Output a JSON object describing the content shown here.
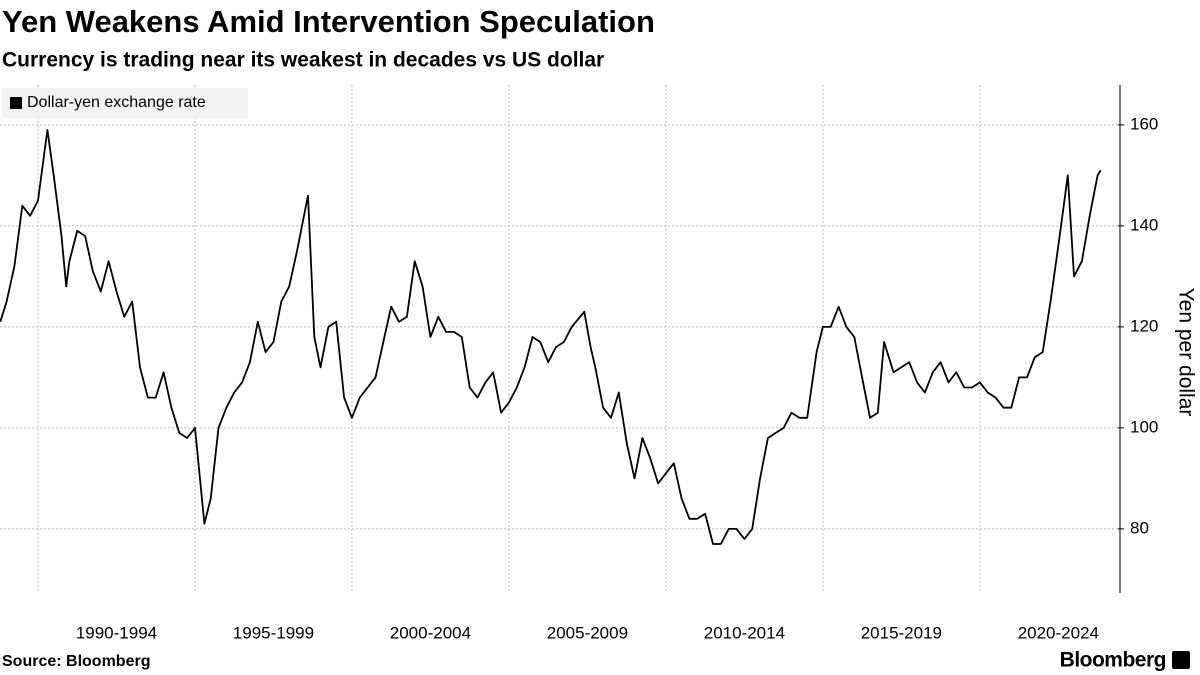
{
  "chart_data": {
    "type": "line",
    "title": "Yen Weakens Amid Intervention Speculation",
    "subtitle": "Currency is trading near its weakest in decades vs US dollar",
    "y_label": "Yen per dollar",
    "source": "Source: Bloomberg",
    "brand": "Bloomberg",
    "legend": "top-left",
    "grid": true,
    "x": [
      1988.8,
      1989.0,
      1989.25,
      1989.5,
      1989.75,
      1990.0,
      1990.3,
      1990.5,
      1990.75,
      1990.9,
      1991.0,
      1991.25,
      1991.5,
      1991.75,
      1992.0,
      1992.25,
      1992.5,
      1992.75,
      1993.0,
      1993.25,
      1993.5,
      1993.75,
      1994.0,
      1994.25,
      1994.5,
      1994.75,
      1995.0,
      1995.3,
      1995.5,
      1995.75,
      1996.0,
      1996.25,
      1996.5,
      1996.75,
      1997.0,
      1997.25,
      1997.5,
      1997.75,
      1998.0,
      1998.25,
      1998.6,
      1998.8,
      1999.0,
      1999.25,
      1999.5,
      1999.75,
      2000.0,
      2000.25,
      2000.5,
      2000.75,
      2001.0,
      2001.25,
      2001.5,
      2001.75,
      2002.0,
      2002.25,
      2002.5,
      2002.75,
      2003.0,
      2003.25,
      2003.5,
      2003.75,
      2004.0,
      2004.25,
      2004.5,
      2004.75,
      2005.0,
      2005.25,
      2005.5,
      2005.75,
      2006.0,
      2006.25,
      2006.5,
      2006.75,
      2007.0,
      2007.4,
      2007.6,
      2007.75,
      2008.0,
      2008.25,
      2008.5,
      2008.75,
      2009.0,
      2009.25,
      2009.5,
      2009.75,
      2010.0,
      2010.25,
      2010.5,
      2010.75,
      2011.0,
      2011.25,
      2011.5,
      2011.75,
      2012.0,
      2012.25,
      2012.5,
      2012.75,
      2013.0,
      2013.25,
      2013.5,
      2013.75,
      2014.0,
      2014.25,
      2014.5,
      2014.8,
      2015.0,
      2015.25,
      2015.5,
      2015.75,
      2016.0,
      2016.25,
      2016.5,
      2016.75,
      2016.95,
      2017.25,
      2017.5,
      2017.75,
      2018.0,
      2018.25,
      2018.5,
      2018.75,
      2019.0,
      2019.25,
      2019.5,
      2019.75,
      2020.0,
      2020.25,
      2020.5,
      2020.75,
      2021.0,
      2021.25,
      2021.5,
      2021.75,
      2022.0,
      2022.25,
      2022.5,
      2022.8,
      2023.0,
      2023.25,
      2023.5,
      2023.75,
      2023.85
    ],
    "series": [
      {
        "name": "Dollar-yen exchange rate",
        "color": "#000000",
        "values": [
          121,
          125,
          132,
          144,
          142,
          145,
          159,
          150,
          138,
          128,
          133,
          139,
          138,
          131,
          127,
          133,
          127,
          122,
          125,
          112,
          106,
          106,
          111,
          104,
          99,
          98,
          100,
          81,
          86,
          100,
          104,
          107,
          109,
          113,
          121,
          115,
          117,
          125,
          128,
          135,
          146,
          118,
          112,
          120,
          121,
          106,
          102,
          106,
          108,
          110,
          117,
          124,
          121,
          122,
          133,
          128,
          118,
          122,
          119,
          119,
          118,
          108,
          106,
          109,
          111,
          103,
          105,
          108,
          112,
          118,
          117,
          113,
          116,
          117,
          120,
          123,
          116,
          112,
          104,
          102,
          107,
          97,
          90,
          98,
          94,
          89,
          91,
          93,
          86,
          82,
          82,
          83,
          77,
          77,
          80,
          80,
          78,
          80,
          90,
          98,
          99,
          100,
          103,
          102,
          102,
          115,
          120,
          120,
          124,
          120,
          118,
          110,
          102,
          103,
          117,
          111,
          112,
          113,
          109,
          107,
          111,
          113,
          109,
          111,
          108,
          108,
          109,
          107,
          106,
          104,
          104,
          110,
          110,
          114,
          115,
          125,
          136,
          150,
          130,
          133,
          142,
          150,
          151
        ]
      }
    ],
    "xlim": [
      1988.79,
      2024.4
    ],
    "xticks": [
      {
        "value": 1990,
        "label": "1990-1994"
      },
      {
        "value": 1995,
        "label": "1995-1999"
      },
      {
        "value": 2000,
        "label": "2000-2004"
      },
      {
        "value": 2005,
        "label": "2005-2009"
      },
      {
        "value": 2010,
        "label": "2010-2014"
      },
      {
        "value": 2015,
        "label": "2015-2019"
      },
      {
        "value": 2020,
        "label": "2020-2024"
      }
    ],
    "ylim": [
      67.3,
      167.9
    ],
    "yticks": [
      80,
      100,
      120,
      140,
      160
    ]
  }
}
